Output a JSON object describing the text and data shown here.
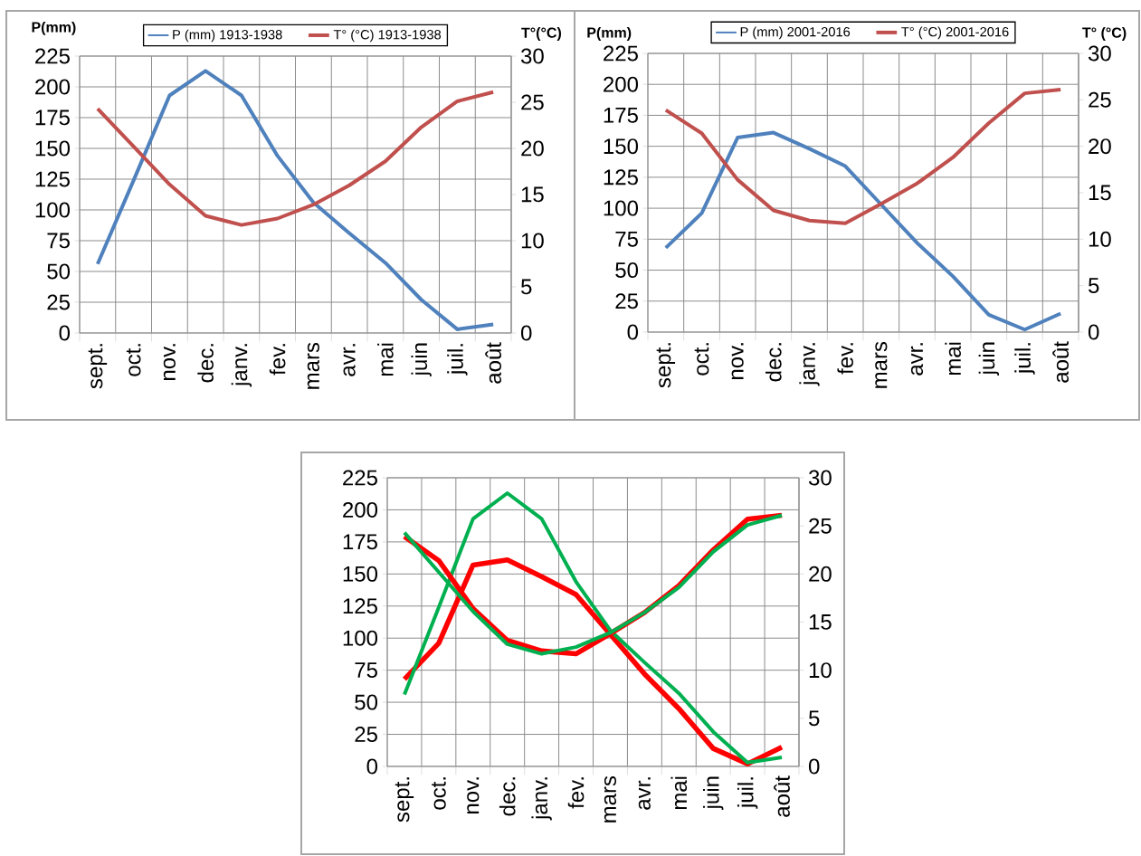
{
  "chart_data": [
    {
      "type": "line",
      "categories": [
        "sept.",
        "oct.",
        "nov.",
        "dec.",
        "janv.",
        "fev.",
        "mars",
        "avr.",
        "mai",
        "juin",
        "juil.",
        "août"
      ],
      "ylabel": "P(mm)",
      "y2label": "T°(°C)",
      "ylim": [
        0,
        225
      ],
      "yticks": [
        0,
        25,
        50,
        75,
        100,
        125,
        150,
        175,
        200,
        225
      ],
      "y2lim": [
        0,
        30
      ],
      "y2ticks": [
        0,
        5,
        10,
        15,
        20,
        25,
        30
      ],
      "grid": true,
      "legend": "top",
      "series": [
        {
          "name": "P (mm) 1913-1938",
          "color": "#4f81bd",
          "axis": "y",
          "values": [
            56,
            124,
            193,
            213,
            193,
            144,
            106,
            81,
            57,
            27,
            3,
            7
          ]
        },
        {
          "name": "T° (°C) 1913-1938",
          "color": "#c0504d",
          "axis": "y2",
          "values": [
            24.3,
            20.2,
            16.1,
            12.7,
            11.7,
            12.4,
            13.9,
            16.0,
            18.6,
            22.3,
            25.1,
            26.1
          ]
        }
      ]
    },
    {
      "type": "line",
      "categories": [
        "sept.",
        "oct.",
        "nov.",
        "dec.",
        "janv.",
        "fev.",
        "mars",
        "avr.",
        "mai",
        "juin",
        "juil.",
        "août"
      ],
      "ylabel": "P(mm)",
      "y2label": "T° (°C)",
      "ylim": [
        0,
        225
      ],
      "yticks": [
        0,
        25,
        50,
        75,
        100,
        125,
        150,
        175,
        200,
        225
      ],
      "y2lim": [
        0,
        30
      ],
      "y2ticks": [
        0,
        5,
        10,
        15,
        20,
        25,
        30
      ],
      "grid": true,
      "legend": "top",
      "series": [
        {
          "name": "P (mm) 2001-2016",
          "color": "#4f81bd",
          "axis": "y",
          "values": [
            68,
            96,
            157,
            161,
            148,
            134,
            103,
            72,
            45,
            14,
            2,
            15
          ]
        },
        {
          "name": "T° (°C) 2001-2016",
          "color": "#c0504d",
          "axis": "y2",
          "values": [
            23.9,
            21.4,
            16.4,
            13.1,
            12.0,
            11.7,
            13.8,
            16.0,
            18.8,
            22.5,
            25.7,
            26.1
          ]
        }
      ]
    },
    {
      "type": "line",
      "categories": [
        "sept.",
        "oct.",
        "nov.",
        "dec.",
        "janv.",
        "fev.",
        "mars",
        "avr.",
        "mai",
        "juin",
        "juil.",
        "août"
      ],
      "ylim": [
        0,
        225
      ],
      "yticks": [
        0,
        25,
        50,
        75,
        100,
        125,
        150,
        175,
        200,
        225
      ],
      "y2lim": [
        0,
        30
      ],
      "y2ticks": [
        0,
        5,
        10,
        15,
        20,
        25,
        30
      ],
      "grid": true,
      "series": [
        {
          "color": "#ff0000",
          "axis": "y",
          "values": [
            68,
            96,
            157,
            161,
            148,
            134,
            103,
            72,
            45,
            14,
            2,
            15
          ]
        },
        {
          "color": "#ff0000",
          "axis": "y2",
          "values": [
            23.9,
            21.4,
            16.4,
            13.1,
            12.0,
            11.7,
            13.8,
            16.0,
            18.8,
            22.5,
            25.7,
            26.1
          ]
        },
        {
          "color": "#00b050",
          "axis": "y",
          "values": [
            56,
            124,
            193,
            213,
            193,
            144,
            106,
            81,
            57,
            27,
            3,
            7
          ]
        },
        {
          "color": "#00b050",
          "axis": "y2",
          "values": [
            24.3,
            20.2,
            16.1,
            12.7,
            11.7,
            12.4,
            13.9,
            16.0,
            18.6,
            22.3,
            25.1,
            26.1
          ]
        }
      ]
    }
  ]
}
